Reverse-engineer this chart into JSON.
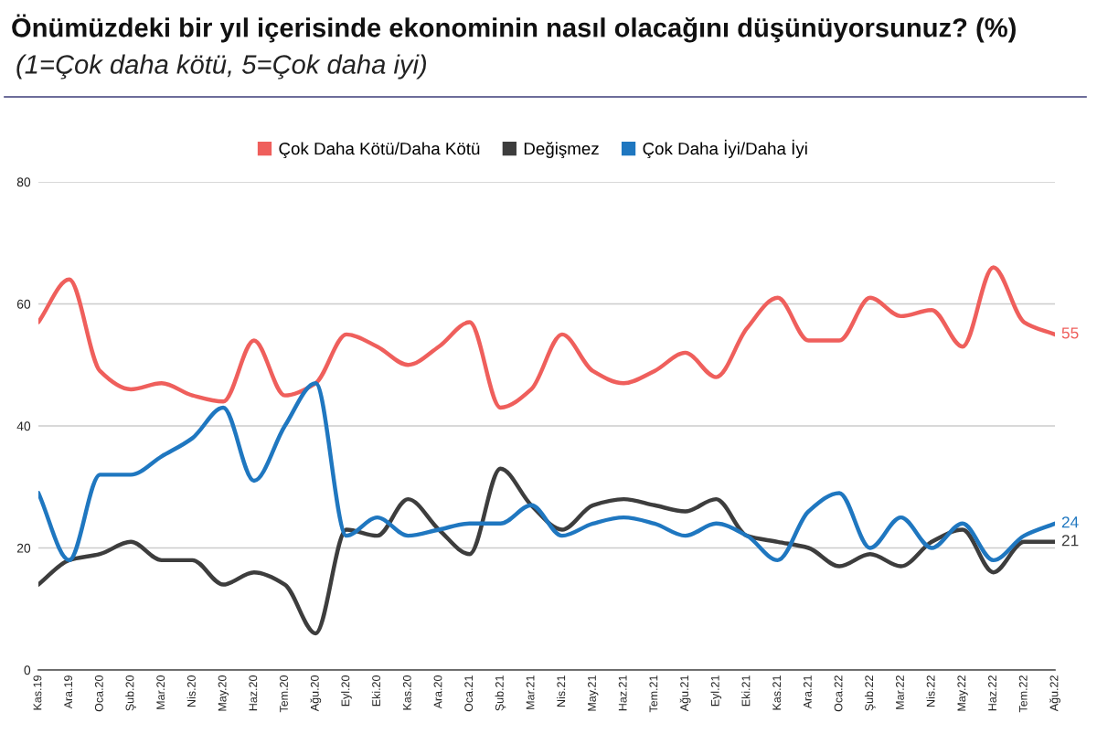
{
  "chart_data": {
    "type": "line",
    "title": "Önümüzdeki bir yıl içerisinde ekonominin nasıl olacağını düşünüyorsunuz? (%)",
    "subtitle": "(1=Çok daha kötü, 5=Çok daha iyi)",
    "categories": [
      "Kas.19",
      "Ara.19",
      "Oca.20",
      "Şub.20",
      "Mar.20",
      "Nis.20",
      "May.20",
      "Haz.20",
      "Tem.20",
      "Ağu.20",
      "Eyl.20",
      "Eki.20",
      "Kas.20",
      "Ara.20",
      "Oca.21",
      "Şub.21",
      "Mar.21",
      "Nis.21",
      "May.21",
      "Haz.21",
      "Tem.21",
      "Ağu.21",
      "Eyl.21",
      "Eki.21",
      "Kas.21",
      "Ara.21",
      "Oca.22",
      "Şub.22",
      "Mar.22",
      "Nis.22",
      "May.22",
      "Haz.22",
      "Tem.22",
      "Ağu.22"
    ],
    "series": [
      {
        "name": "Çok Daha Kötü/Daha Kötü",
        "color": "#ef5f5c",
        "values": [
          57,
          64,
          49,
          46,
          47,
          45,
          44,
          54,
          45,
          47,
          55,
          53,
          50,
          53,
          57,
          43,
          46,
          55,
          49,
          47,
          49,
          52,
          48,
          56,
          61,
          54,
          54,
          61,
          58,
          59,
          53,
          66,
          57,
          55
        ],
        "value_labels": [
          null,
          null,
          null,
          null,
          null,
          null,
          null,
          null,
          null,
          null,
          null,
          null,
          null,
          null,
          null,
          null,
          null,
          null,
          null,
          null,
          null,
          null,
          null,
          null,
          null,
          null,
          null,
          null,
          null,
          null,
          null,
          null,
          null,
          "55"
        ]
      },
      {
        "name": "Değişmez",
        "color": "#3d3d3d",
        "values": [
          14,
          18,
          19,
          21,
          18,
          18,
          14,
          16,
          14,
          6,
          23,
          22,
          28,
          23,
          19,
          33,
          27,
          23,
          27,
          28,
          27,
          26,
          28,
          22,
          21,
          20,
          17,
          19,
          17,
          21,
          23,
          16,
          21,
          21
        ],
        "value_labels": [
          null,
          null,
          null,
          null,
          null,
          null,
          null,
          null,
          null,
          null,
          null,
          null,
          null,
          null,
          null,
          null,
          null,
          null,
          null,
          null,
          null,
          null,
          null,
          null,
          null,
          null,
          null,
          null,
          null,
          null,
          null,
          null,
          null,
          "21"
        ]
      },
      {
        "name": "Çok Daha İyi/Daha İyi",
        "color": "#1f77c0",
        "values": [
          29,
          18,
          32,
          32,
          35,
          38,
          43,
          31,
          40,
          47,
          22,
          25,
          22,
          23,
          24,
          24,
          27,
          22,
          24,
          25,
          24,
          22,
          24,
          22,
          18,
          26,
          29,
          20,
          25,
          20,
          24,
          18,
          22,
          24
        ],
        "value_labels": [
          null,
          null,
          null,
          null,
          null,
          null,
          null,
          null,
          null,
          null,
          null,
          null,
          null,
          null,
          null,
          null,
          null,
          null,
          null,
          null,
          null,
          null,
          null,
          null,
          null,
          null,
          null,
          null,
          null,
          null,
          null,
          null,
          null,
          "24"
        ]
      }
    ],
    "ylim": [
      0,
      80
    ],
    "yticks": [
      0,
      20,
      40,
      60,
      80
    ],
    "grid": "y",
    "legend": "top"
  }
}
